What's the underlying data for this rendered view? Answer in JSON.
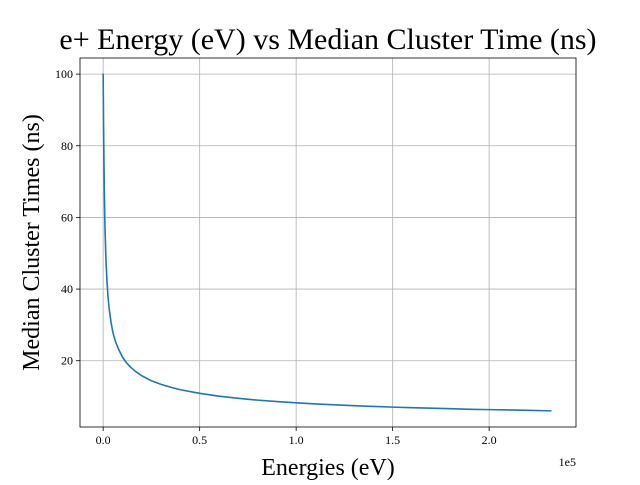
{
  "chart_data": {
    "type": "line",
    "title": "e+ Energy (eV) vs Median Cluster Time (ns)",
    "xlabel": "Energies (eV)",
    "ylabel": "Median Cluster Times (ns)",
    "x_offset_label": "1e5",
    "xlim": [
      -12000,
      245000
    ],
    "ylim": [
      1.5,
      104.5
    ],
    "xticks": [
      0,
      50000,
      100000,
      150000,
      200000
    ],
    "xtick_labels": [
      "0.0",
      "0.5",
      "1.0",
      "1.5",
      "2.0"
    ],
    "yticks": [
      20,
      40,
      60,
      80,
      100
    ],
    "ytick_labels": [
      "20",
      "40",
      "60",
      "80",
      "100"
    ],
    "grid": true,
    "legend": "none",
    "series": [
      {
        "color": "#1f77b4",
        "x": [
          0,
          200,
          400,
          600,
          800,
          1000,
          1500,
          2000,
          2500,
          3000,
          4000,
          5000,
          6000,
          7000,
          8000,
          10000,
          12000,
          14000,
          17000,
          20000,
          25000,
          30000,
          35000,
          40000,
          50000,
          60000,
          70000,
          80000,
          90000,
          100000,
          110000,
          120000,
          130000,
          140000,
          150000,
          160000,
          170000,
          180000,
          190000,
          200000,
          210000,
          220000,
          232000
        ],
        "y": [
          100,
          86,
          76,
          68,
          61,
          56,
          47.5,
          42,
          38,
          35,
          31,
          28,
          26,
          24.5,
          23.2,
          21,
          19.5,
          18.3,
          16.9,
          15.8,
          14.4,
          13.4,
          12.6,
          11.9,
          10.9,
          10.1,
          9.5,
          9.0,
          8.6,
          8.25,
          7.95,
          7.7,
          7.45,
          7.25,
          7.05,
          6.9,
          6.75,
          6.6,
          6.45,
          6.35,
          6.25,
          6.15,
          6.0
        ]
      }
    ]
  }
}
